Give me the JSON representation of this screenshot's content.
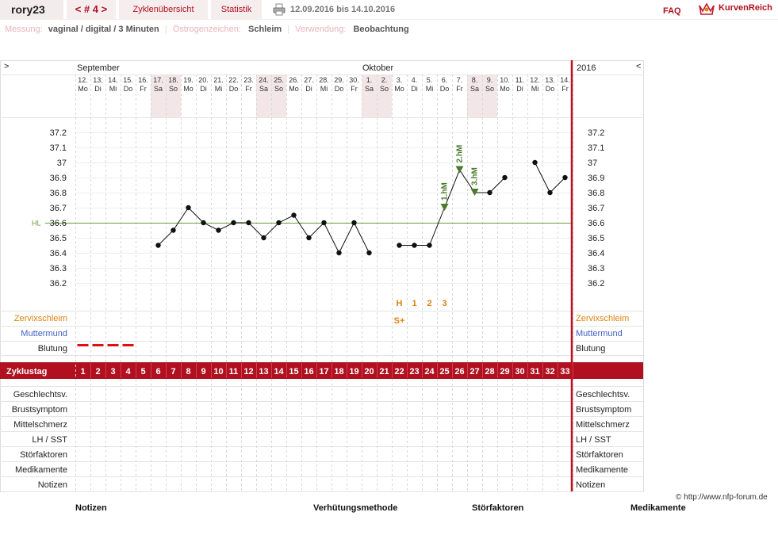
{
  "header": {
    "user": "rory23",
    "cycle_nav": "< # 4 >",
    "tab_cycles": "Zyklenübersicht",
    "tab_stats": "Statistik",
    "date_range": "12.09.2016 bis 14.10.2016",
    "faq": "FAQ",
    "brand": "KurvenReich"
  },
  "meta": {
    "measure_label": "Messung:",
    "measure_value": "vaginal / digital / 3 Minuten",
    "estrogen_label": "Östrogenzeichen:",
    "estrogen_value": "Schleim",
    "usage_label": "Verwendung:",
    "usage_value": "Beobachtung"
  },
  "chart_header": {
    "left_arrow": ">",
    "right_arrow": "<",
    "month_sep": "September",
    "month_oct": "Oktober",
    "year": "2016"
  },
  "days": [
    {
      "d": "12.",
      "w": "Mo",
      "we": false
    },
    {
      "d": "13.",
      "w": "Di",
      "we": false
    },
    {
      "d": "14.",
      "w": "Mi",
      "we": false
    },
    {
      "d": "15.",
      "w": "Do",
      "we": false
    },
    {
      "d": "16.",
      "w": "Fr",
      "we": false
    },
    {
      "d": "17.",
      "w": "Sa",
      "we": true
    },
    {
      "d": "18.",
      "w": "So",
      "we": true
    },
    {
      "d": "19.",
      "w": "Mo",
      "we": false
    },
    {
      "d": "20.",
      "w": "Di",
      "we": false
    },
    {
      "d": "21.",
      "w": "Mi",
      "we": false
    },
    {
      "d": "22.",
      "w": "Do",
      "we": false
    },
    {
      "d": "23.",
      "w": "Fr",
      "we": false
    },
    {
      "d": "24.",
      "w": "Sa",
      "we": true
    },
    {
      "d": "25.",
      "w": "So",
      "we": true
    },
    {
      "d": "26.",
      "w": "Mo",
      "we": false
    },
    {
      "d": "27.",
      "w": "Di",
      "we": false
    },
    {
      "d": "28.",
      "w": "Mi",
      "we": false
    },
    {
      "d": "29.",
      "w": "Do",
      "we": false
    },
    {
      "d": "30.",
      "w": "Fr",
      "we": false
    },
    {
      "d": "1.",
      "w": "Sa",
      "we": true
    },
    {
      "d": "2.",
      "w": "So",
      "we": true
    },
    {
      "d": "3.",
      "w": "Mo",
      "we": false
    },
    {
      "d": "4.",
      "w": "Di",
      "we": false
    },
    {
      "d": "5.",
      "w": "Mi",
      "we": false
    },
    {
      "d": "6.",
      "w": "Do",
      "we": false
    },
    {
      "d": "7.",
      "w": "Fr",
      "we": false
    },
    {
      "d": "8.",
      "w": "Sa",
      "we": true
    },
    {
      "d": "9.",
      "w": "So",
      "we": true
    },
    {
      "d": "10.",
      "w": "Mo",
      "we": false
    },
    {
      "d": "11.",
      "w": "Di",
      "we": false
    },
    {
      "d": "12.",
      "w": "Mi",
      "we": false
    },
    {
      "d": "13.",
      "w": "Do",
      "we": false
    },
    {
      "d": "14.",
      "w": "Fr",
      "we": false
    }
  ],
  "chart_data": {
    "type": "line",
    "x": [
      1,
      2,
      3,
      4,
      5,
      6,
      7,
      8,
      9,
      10,
      11,
      12,
      13,
      14,
      15,
      16,
      17,
      18,
      19,
      20,
      21,
      22,
      23,
      24,
      25,
      26,
      27,
      28,
      29,
      30,
      31,
      32,
      33
    ],
    "ylim": [
      36.1,
      37.3
    ],
    "y_ticks": [
      "37.2",
      "37.1",
      "37",
      "36.9",
      "36.8",
      "36.7",
      "36.6",
      "36.5",
      "36.4",
      "36.3",
      "36.2"
    ],
    "hl_value": 36.6,
    "hl_label": "HL",
    "temps": [
      null,
      null,
      null,
      null,
      null,
      36.45,
      36.55,
      36.7,
      36.6,
      36.55,
      36.6,
      36.6,
      36.5,
      36.6,
      36.65,
      36.5,
      36.6,
      36.4,
      36.6,
      36.4,
      null,
      36.45,
      36.45,
      36.45,
      36.7,
      36.95,
      36.8,
      36.8,
      36.9,
      null,
      37.0,
      36.8,
      36.9
    ],
    "markers": [
      {
        "day": 25,
        "label": "1.hM"
      },
      {
        "day": 26,
        "label": "2.hM"
      },
      {
        "day": 27,
        "label": "3.hM"
      }
    ],
    "mucus_codes": [
      {
        "day": 22,
        "text": "H"
      },
      {
        "day": 23,
        "text": "1"
      },
      {
        "day": 24,
        "text": "2"
      },
      {
        "day": 25,
        "text": "3"
      }
    ],
    "mucus_symbol": {
      "day": 22,
      "text": "S+"
    },
    "bleeding_days": [
      1,
      2,
      3,
      4
    ]
  },
  "rows": {
    "cervical_mucus": "Zervixschleim",
    "cervix": "Muttermund",
    "bleeding": "Blutung",
    "cycle_day": "Zyklustag",
    "extra": [
      "Geschlechtsv.",
      "Brustsymptom",
      "Mittelschmerz",
      "LH / SST",
      "Störfaktoren",
      "Medikamente",
      "Notizen"
    ]
  },
  "footer": {
    "copyright": "© http://www.nfp-forum.de",
    "notes": "Notizen",
    "contraception": "Verhütungsmethode",
    "disturbances": "Störfaktoren",
    "medication": "Medikamente"
  },
  "colors": {
    "accent": "#b01020",
    "weekend": "#f3e6e8",
    "mucus": "#e08010",
    "cervix": "#4060c0",
    "marker": "#4a7a2a",
    "hl_line": "#6a9a3a"
  }
}
